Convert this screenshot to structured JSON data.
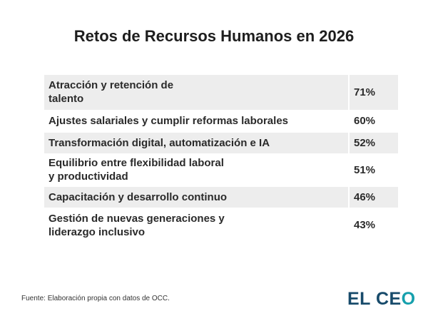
{
  "title": "Retos de Recursos Humanos en 2026",
  "rows": [
    {
      "label": "Atracción y retención de\ntalento",
      "value": "71%"
    },
    {
      "label": "Ajustes salariales y cumplir reformas laborales",
      "value": "60%"
    },
    {
      "label": "Transformación digital, automatización e IA",
      "value": "52%"
    },
    {
      "label": "Equilibrio entre flexibilidad laboral\ny productividad",
      "value": "51%"
    },
    {
      "label": "Capacitación y desarrollo continuo",
      "value": "46%"
    },
    {
      "label": "Gestión de nuevas generaciones y\nliderazgo inclusivo",
      "value": "43%"
    }
  ],
  "source": "Fuente: Elaboración propia con datos de OCC.",
  "logo": {
    "main": "EL CE",
    "accent": "O"
  }
}
